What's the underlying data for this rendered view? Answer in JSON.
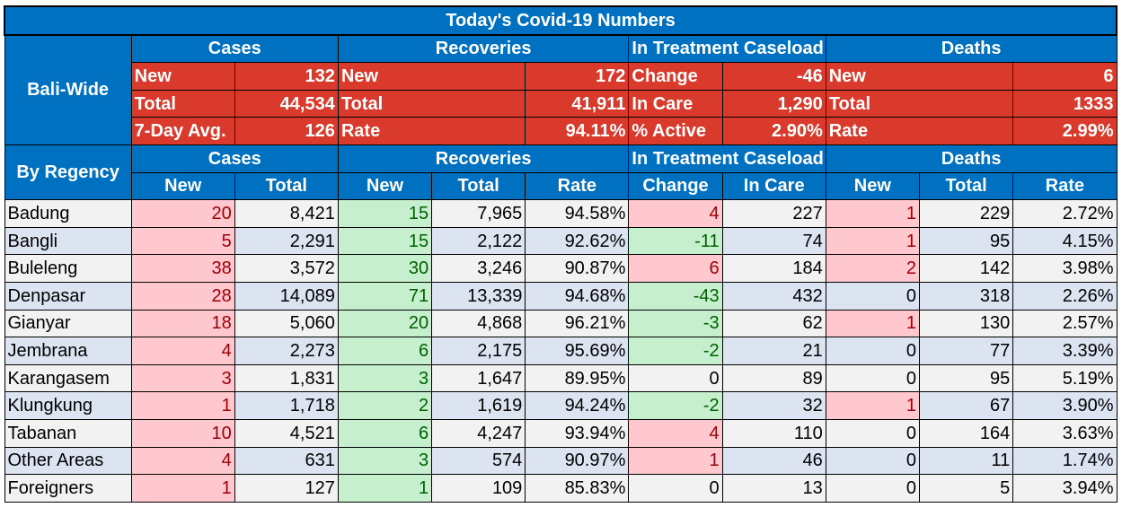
{
  "title": "Today's Covid-19 Numbers",
  "groups": {
    "cases": "Cases",
    "recoveries": "Recoveries",
    "treatment": "In Treatment Caseload",
    "deaths": "Deaths"
  },
  "bali_wide": {
    "label": "Bali-Wide",
    "rows": [
      {
        "c_label": "New",
        "c_val": "132",
        "r_label": "New",
        "r_val": "172",
        "t_label": "Change",
        "t_val": "-46",
        "d_label": "New",
        "d_val": "6"
      },
      {
        "c_label": "Total",
        "c_val": "44,534",
        "r_label": "Total",
        "r_val": "41,911",
        "t_label": "In Care",
        "t_val": "1,290",
        "d_label": "Total",
        "d_val": "1333"
      },
      {
        "c_label": "7-Day Avg.",
        "c_val": "126",
        "r_label": "Rate",
        "r_val": "94.11%",
        "t_label": "% Active",
        "t_val": "2.90%",
        "d_label": "Rate",
        "d_val": "2.99%"
      }
    ]
  },
  "by_regency": {
    "label": "By Regency",
    "subheaders": [
      "New",
      "Total",
      "New",
      "Total",
      "Rate",
      "Change",
      "In Care",
      "New",
      "Total",
      "Rate"
    ],
    "rows": [
      {
        "name": "Badung",
        "c_new": "20",
        "c_total": "8,421",
        "r_new": "15",
        "r_total": "7,965",
        "r_rate": "94.58%",
        "t_change": "4",
        "t_care": "227",
        "d_new": "1",
        "d_total": "229",
        "d_rate": "2.72%"
      },
      {
        "name": "Bangli",
        "c_new": "5",
        "c_total": "2,291",
        "r_new": "15",
        "r_total": "2,122",
        "r_rate": "92.62%",
        "t_change": "-11",
        "t_care": "74",
        "d_new": "1",
        "d_total": "95",
        "d_rate": "4.15%"
      },
      {
        "name": "Buleleng",
        "c_new": "38",
        "c_total": "3,572",
        "r_new": "30",
        "r_total": "3,246",
        "r_rate": "90.87%",
        "t_change": "6",
        "t_care": "184",
        "d_new": "2",
        "d_total": "142",
        "d_rate": "3.98%"
      },
      {
        "name": "Denpasar",
        "c_new": "28",
        "c_total": "14,089",
        "r_new": "71",
        "r_total": "13,339",
        "r_rate": "94.68%",
        "t_change": "-43",
        "t_care": "432",
        "d_new": "0",
        "d_total": "318",
        "d_rate": "2.26%"
      },
      {
        "name": "Gianyar",
        "c_new": "18",
        "c_total": "5,060",
        "r_new": "20",
        "r_total": "4,868",
        "r_rate": "96.21%",
        "t_change": "-3",
        "t_care": "62",
        "d_new": "1",
        "d_total": "130",
        "d_rate": "2.57%"
      },
      {
        "name": "Jembrana",
        "c_new": "4",
        "c_total": "2,273",
        "r_new": "6",
        "r_total": "2,175",
        "r_rate": "95.69%",
        "t_change": "-2",
        "t_care": "21",
        "d_new": "0",
        "d_total": "77",
        "d_rate": "3.39%"
      },
      {
        "name": "Karangasem",
        "c_new": "3",
        "c_total": "1,831",
        "r_new": "3",
        "r_total": "1,647",
        "r_rate": "89.95%",
        "t_change": "0",
        "t_care": "89",
        "d_new": "0",
        "d_total": "95",
        "d_rate": "5.19%"
      },
      {
        "name": "Klungkung",
        "c_new": "1",
        "c_total": "1,718",
        "r_new": "2",
        "r_total": "1,619",
        "r_rate": "94.24%",
        "t_change": "-2",
        "t_care": "32",
        "d_new": "1",
        "d_total": "67",
        "d_rate": "3.90%"
      },
      {
        "name": "Tabanan",
        "c_new": "10",
        "c_total": "4,521",
        "r_new": "6",
        "r_total": "4,247",
        "r_rate": "93.94%",
        "t_change": "4",
        "t_care": "110",
        "d_new": "0",
        "d_total": "164",
        "d_rate": "3.63%"
      },
      {
        "name": "Other Areas",
        "c_new": "4",
        "c_total": "631",
        "r_new": "3",
        "r_total": "574",
        "r_rate": "90.97%",
        "t_change": "1",
        "t_care": "46",
        "d_new": "0",
        "d_total": "11",
        "d_rate": "1.74%"
      },
      {
        "name": "Foreigners",
        "c_new": "1",
        "c_total": "127",
        "r_new": "1",
        "r_total": "109",
        "r_rate": "85.83%",
        "t_change": "0",
        "t_care": "13",
        "d_new": "0",
        "d_total": "5",
        "d_rate": "3.94%"
      }
    ]
  },
  "colors": {
    "header_blue": "#0070C0",
    "summary_red": "#D93A2B",
    "pink_fill": "#FFC7CE",
    "pink_text": "#9C0006",
    "green_fill": "#C6EFCE",
    "green_text": "#006100",
    "row_gray": "#F2F2F2",
    "row_blue": "#DCE3F1"
  }
}
